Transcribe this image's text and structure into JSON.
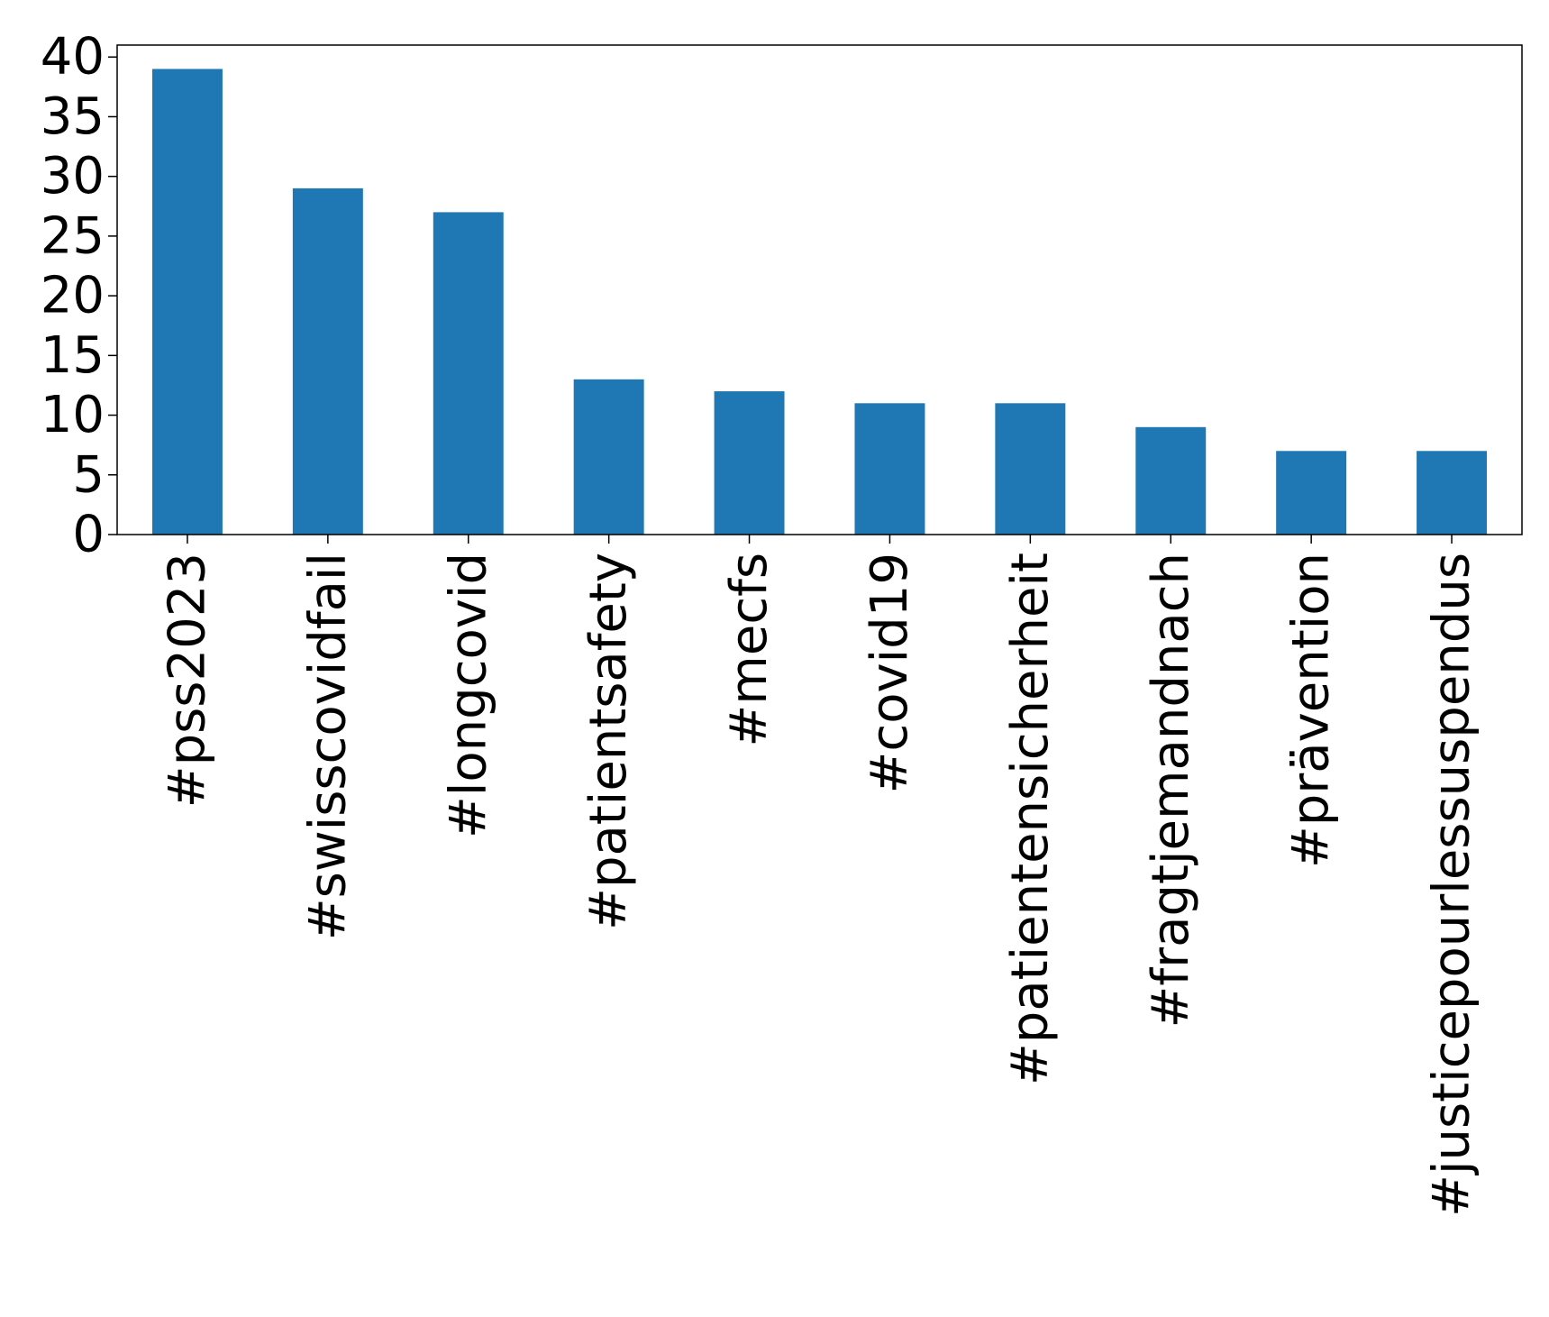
{
  "chart_data": {
    "type": "bar",
    "title": "",
    "xlabel": "",
    "ylabel": "",
    "categories": [
      "#pss2023",
      "#swisscovidfail",
      "#longcovid",
      "#patientsafety",
      "#mecfs",
      "#covid19",
      "#patientensicherheit",
      "#fragtjemandnach",
      "#prävention",
      "#justicepourlessuspendus"
    ],
    "values": [
      39,
      29,
      27,
      13,
      12,
      11,
      11,
      9,
      7,
      7
    ],
    "ylim": [
      0,
      41
    ],
    "yticks": [
      0,
      5,
      10,
      15,
      20,
      25,
      30,
      35,
      40
    ],
    "bar_color": "#1f77b4",
    "grid": false,
    "legend": "none"
  }
}
